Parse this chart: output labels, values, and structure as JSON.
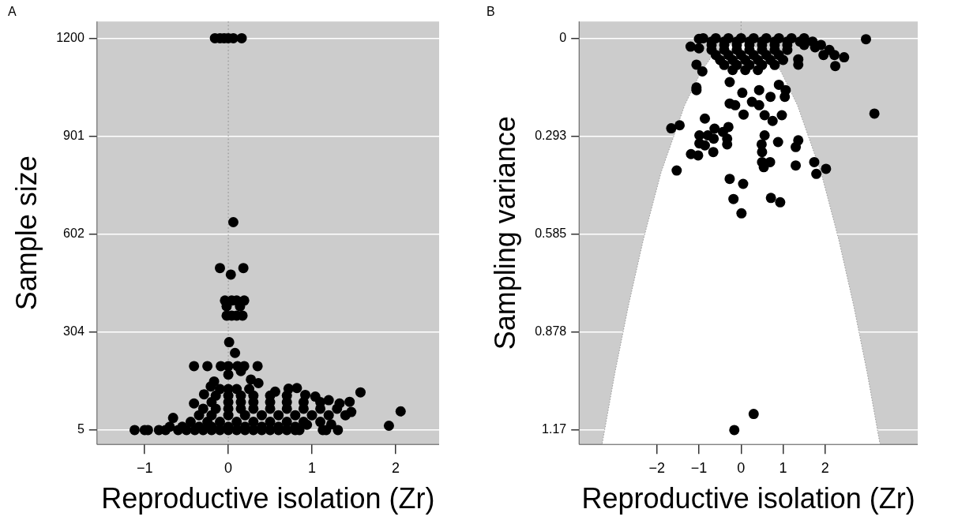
{
  "chart_data": [
    {
      "type": "scatter",
      "title": "A",
      "xlabel": "Reproductive isolation (Zr)",
      "ylabel": "Sample size",
      "xlim": [
        -1.57,
        2.52
      ],
      "ylim": [
        -39,
        1251
      ],
      "xticks": [
        -1,
        0,
        1,
        2
      ],
      "yticks": [
        5,
        304,
        602,
        901,
        1200
      ],
      "grid": "y",
      "legend": false,
      "marker": "circle",
      "ref_lines": [
        {
          "axis": "x",
          "value": 0,
          "color": "#888888",
          "line_style": "dotted"
        }
      ],
      "series": [
        {
          "color": "#000000",
          "x": [
            -0.16,
            -0.1,
            -0.05,
            0.0,
            0.06,
            0.16,
            0.06,
            -0.1,
            0.18,
            0.03,
            -0.04,
            0.04,
            0.1,
            0.19,
            -0.02,
            0.14,
            -0.02,
            0.04,
            0.1,
            0.17,
            0.01,
            0.08,
            -0.41,
            -0.25,
            -0.09,
            0.0,
            0.11,
            0.19,
            0.35,
            0.36,
            1.58,
            2.06,
            1.92,
            0.82,
            0.72,
            -1.12,
            -1.0,
            -0.96,
            -0.83,
            -0.75,
            -0.6,
            -0.5,
            -0.4,
            -0.3,
            -0.2,
            -0.1,
            0,
            0.1,
            0.2,
            0.3,
            0.4,
            0.5,
            0.6,
            0.7,
            0.8,
            0.85,
            1.13,
            1.17,
            1.31,
            1.23,
            0.94,
            -0.66,
            -0.29,
            -0.41,
            1.04,
            1.2,
            1.45,
            1.47,
            1.33,
            0.92,
            0.56,
            0.27,
            0.15,
            -0.17,
            -0.21,
            0.0,
            -0.7,
            -0.55,
            -0.35,
            -0.2,
            0,
            0.2,
            0.4,
            0.6,
            0.8,
            -0.45,
            -0.25,
            -0.1,
            0.1,
            0.3,
            0.5,
            0.7,
            0.9,
            1.1,
            -0.35,
            -0.2,
            0,
            0.2,
            0.4,
            0.6,
            0.8,
            1.0,
            1.2,
            1.4,
            -0.3,
            -0.15,
            0,
            0.15,
            0.3,
            0.5,
            0.7,
            0.9,
            1.1,
            1.3,
            -0.2,
            0,
            0.15,
            0.3,
            0.5,
            0.7,
            0.9,
            1.1,
            -0.15,
            0,
            0.15,
            0.3,
            0.5,
            0.7,
            -0.1,
            0,
            0.1,
            0.25
          ],
          "values": [
            1200,
            1200,
            1200,
            1200,
            1200,
            1200,
            639,
            499,
            499,
            479,
            400,
            400,
            400,
            400,
            382,
            382,
            354,
            354,
            354,
            354,
            273,
            240,
            200,
            200,
            200,
            200,
            200,
            200,
            200,
            148,
            120,
            62,
            18,
            133,
            131,
            5,
            5,
            5,
            5,
            5,
            5,
            5,
            5,
            5,
            5,
            5,
            5,
            5,
            5,
            5,
            5,
            5,
            5,
            5,
            5,
            5,
            5,
            5,
            5,
            22,
            21,
            42,
            114,
            86,
            107,
            96,
            91,
            60,
            86,
            112,
            122,
            159,
            185,
            153,
            138,
            174,
            15,
            15,
            15,
            15,
            15,
            15,
            15,
            15,
            15,
            30,
            30,
            30,
            30,
            30,
            30,
            30,
            30,
            30,
            50,
            50,
            50,
            50,
            50,
            50,
            50,
            50,
            50,
            50,
            70,
            70,
            70,
            70,
            70,
            70,
            70,
            70,
            70,
            70,
            90,
            90,
            90,
            90,
            90,
            90,
            90,
            90,
            110,
            110,
            110,
            110,
            110,
            110,
            130,
            130,
            130,
            130
          ]
        }
      ]
    },
    {
      "type": "scatter",
      "title": "B",
      "xlabel": "Reproductive isolation (Zr)",
      "ylabel": "Sampling variance",
      "xlim": [
        -3.85,
        4.2
      ],
      "ylim": [
        1.213,
        -0.05
      ],
      "xticks": [
        -2,
        -1,
        0,
        1,
        2
      ],
      "yticks": [
        0,
        0.293,
        0.585,
        0.878,
        1.17
      ],
      "grid": "y",
      "legend": false,
      "marker": "circle",
      "ref_lines": [
        {
          "axis": "x",
          "value": 0,
          "color": "#888888",
          "line_style": "dotted"
        }
      ],
      "series": [
        {
          "type": "area",
          "marker": "none",
          "color": "#ffffff",
          "x": [
            -3.3,
            -3,
            -2.68,
            -2.32,
            -1.9,
            -1.34,
            -0.95,
            -0.67,
            0,
            0.67,
            0.95,
            1.34,
            1.9,
            2.32,
            2.68,
            3,
            3.3
          ],
          "values": [
            1.21,
            1.0,
            0.8,
            0.6,
            0.4,
            0.2,
            0.1,
            0.05,
            0,
            0.05,
            0.1,
            0.2,
            0.4,
            0.6,
            0.8,
            1.0,
            1.21
          ]
        },
        {
          "color": "#000000",
          "x": [
            2.97,
            3.17,
            -1.0,
            -1.2,
            -1.0,
            -1.06,
            -0.92,
            -1.06,
            -1.06,
            1.36,
            1.36,
            1.96,
            2.22,
            2.45,
            2.24,
            1.76,
            -0.27,
            0.03,
            0.43,
            0.7,
            0.9,
            1.06,
            1.04,
            -0.27,
            -0.14,
            0.06,
            0.26,
            0.43,
            0.56,
            0.75,
            0.97,
            -1.66,
            -1.46,
            -0.86,
            -0.63,
            -0.43,
            -0.3,
            -0.99,
            -0.79,
            -0.65,
            -0.33,
            -0.33,
            -0.99,
            -0.86,
            -0.66,
            -1.19,
            -1.02,
            -1.53,
            -0.27,
            0.05,
            -0.18,
            0.01,
            0.71,
            0.93,
            0.56,
            0.88,
            1.36,
            1.3,
            0.49,
            0.5,
            0.5,
            0.69,
            0.54,
            1.3,
            1.74,
            2.02,
            1.79,
            -0.16,
            0.3,
            -0.9,
            -0.6,
            -0.3,
            0,
            0.3,
            0.6,
            0.9,
            1.2,
            1.5,
            -0.7,
            -0.4,
            -0.1,
            0.2,
            0.5,
            0.8,
            1.1,
            1.4,
            1.7,
            -0.7,
            -0.4,
            -0.1,
            0.2,
            0.5,
            0.8,
            1.1,
            1.5,
            1.9,
            -0.7,
            -0.4,
            -0.1,
            0.2,
            0.5,
            0.8,
            1.1,
            2.1,
            -0.6,
            -0.3,
            0,
            0.3,
            0.6,
            0.9,
            -0.5,
            -0.2,
            0.1,
            0.4,
            0.7,
            1.0,
            -0.4,
            -0.1,
            0.2,
            0.5,
            0.8,
            -0.2,
            0.1,
            0.4
          ],
          "values": [
            0.003,
            0.225,
            0.002,
            0.025,
            0.03,
            0.079,
            0.099,
            0.147,
            0.155,
            0.063,
            0.079,
            0.05,
            0.05,
            0.057,
            0.083,
            0.027,
            0.131,
            0.163,
            0.155,
            0.175,
            0.139,
            0.155,
            0.175,
            0.195,
            0.2,
            0.228,
            0.19,
            0.2,
            0.23,
            0.247,
            0.23,
            0.269,
            0.26,
            0.24,
            0.27,
            0.28,
            0.265,
            0.29,
            0.29,
            0.3,
            0.3,
            0.317,
            0.314,
            0.32,
            0.34,
            0.346,
            0.35,
            0.395,
            0.42,
            0.435,
            0.48,
            0.523,
            0.477,
            0.49,
            0.29,
            0.31,
            0.305,
            0.325,
            0.317,
            0.34,
            0.37,
            0.37,
            0.385,
            0.38,
            0.37,
            0.39,
            0.405,
            1.17,
            1.122,
            0,
            0,
            0,
            0,
            0,
            0,
            0,
            0,
            0,
            0.01,
            0.01,
            0.01,
            0.01,
            0.01,
            0.01,
            0.01,
            0.01,
            0.01,
            0.02,
            0.02,
            0.02,
            0.02,
            0.02,
            0.02,
            0.02,
            0.02,
            0.02,
            0.035,
            0.035,
            0.035,
            0.035,
            0.035,
            0.035,
            0.035,
            0.035,
            0.05,
            0.05,
            0.05,
            0.05,
            0.05,
            0.05,
            0.065,
            0.065,
            0.065,
            0.065,
            0.065,
            0.065,
            0.08,
            0.08,
            0.08,
            0.08,
            0.08,
            0.095,
            0.095,
            0.095
          ]
        }
      ]
    }
  ]
}
